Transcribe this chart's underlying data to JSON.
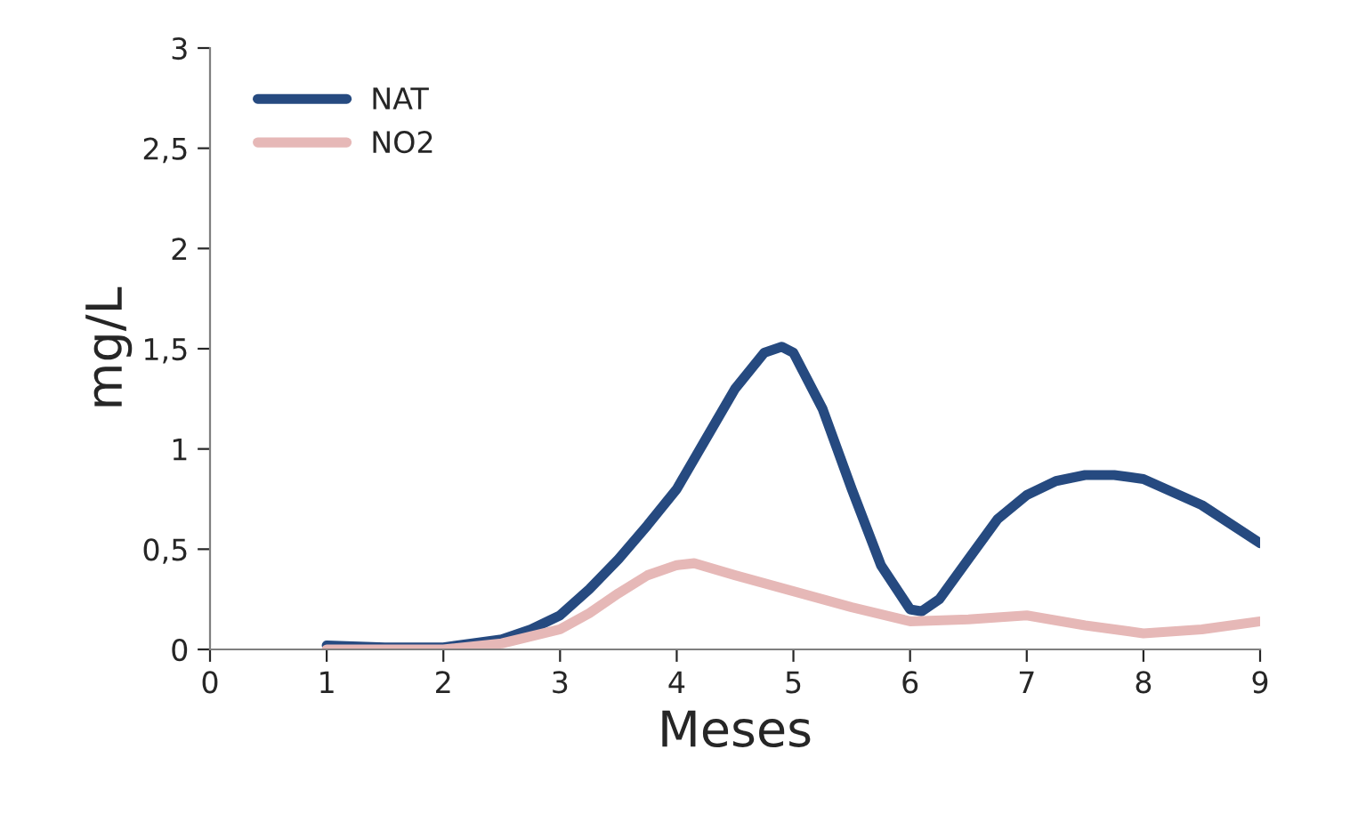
{
  "chart_data": {
    "type": "line",
    "xlabel": "Meses",
    "ylabel": "mg/L",
    "series": [
      {
        "name": "NAT",
        "color": "#264a80",
        "x": [
          1,
          1.5,
          2,
          2.5,
          2.75,
          3,
          3.25,
          3.5,
          3.75,
          4,
          4.25,
          4.5,
          4.75,
          4.9,
          5,
          5.25,
          5.5,
          5.75,
          6,
          6.1,
          6.25,
          6.5,
          6.75,
          7,
          7.25,
          7.5,
          7.75,
          8,
          8.5,
          9
        ],
        "values": [
          0.02,
          0.01,
          0.01,
          0.05,
          0.1,
          0.17,
          0.3,
          0.45,
          0.62,
          0.8,
          1.05,
          1.3,
          1.48,
          1.51,
          1.48,
          1.2,
          0.8,
          0.42,
          0.2,
          0.19,
          0.25,
          0.45,
          0.65,
          0.77,
          0.84,
          0.87,
          0.87,
          0.85,
          0.72,
          0.53
        ]
      },
      {
        "name": "NO2",
        "color": "#e6b8b7",
        "x": [
          1,
          2,
          2.5,
          3,
          3.25,
          3.5,
          3.75,
          4,
          4.15,
          4.5,
          5,
          5.5,
          6,
          6.5,
          7,
          7.5,
          8,
          8.5,
          9
        ],
        "values": [
          0,
          0,
          0.03,
          0.1,
          0.18,
          0.28,
          0.37,
          0.42,
          0.43,
          0.37,
          0.29,
          0.21,
          0.14,
          0.15,
          0.17,
          0.12,
          0.08,
          0.1,
          0.14
        ]
      }
    ],
    "xlim": [
      0,
      9
    ],
    "xticks": [
      0,
      1,
      2,
      3,
      4,
      5,
      6,
      7,
      8,
      9
    ],
    "ylim": [
      0,
      3
    ],
    "yticks": [
      0,
      {
        "value": 0.5,
        "label": "0,5"
      },
      1,
      {
        "value": 1.5,
        "label": "1,5"
      },
      2,
      {
        "value": 2.5,
        "label": "2,5"
      },
      3
    ],
    "grid": false,
    "legend": "top left",
    "marker": "none",
    "line_style": "solid"
  }
}
